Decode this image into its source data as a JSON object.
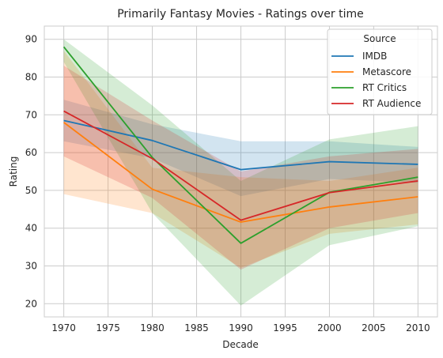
{
  "chart_data": {
    "type": "line",
    "title": "Primarily Fantasy Movies - Ratings over time",
    "xlabel": "Decade",
    "ylabel": "Rating",
    "xlim": [
      1967.8,
      2012.2
    ],
    "ylim": [
      16.5,
      93.5
    ],
    "xticks": [
      1970,
      1975,
      1980,
      1985,
      1990,
      1995,
      2000,
      2005,
      2010
    ],
    "yticks": [
      20,
      30,
      40,
      50,
      60,
      70,
      80,
      90
    ],
    "grid": true,
    "legend": {
      "title": "Source",
      "position": "top-right"
    },
    "x": [
      1970,
      1980,
      1990,
      2000,
      2010
    ],
    "series": [
      {
        "name": "IMDB",
        "color": "#1f77b4",
        "values": [
          68.5,
          63.2,
          55.5,
          57.6,
          56.9
        ],
        "lower": [
          63.0,
          58.5,
          48.5,
          53.0,
          52.0
        ],
        "upper": [
          74.0,
          67.5,
          63.0,
          63.0,
          61.5
        ]
      },
      {
        "name": "Metascore",
        "color": "#ff7f0e",
        "values": [
          68.0,
          50.3,
          41.6,
          45.6,
          48.3
        ],
        "lower": [
          49.0,
          44.0,
          29.5,
          38.5,
          41.0
        ],
        "upper": [
          87.0,
          56.0,
          53.5,
          52.5,
          56.0
        ]
      },
      {
        "name": "RT Critics",
        "color": "#2ca02c",
        "values": [
          88.0,
          58.7,
          36.0,
          49.5,
          53.5
        ],
        "lower": [
          84.0,
          44.0,
          19.5,
          35.5,
          40.5
        ],
        "upper": [
          90.0,
          72.5,
          52.5,
          63.5,
          67.0
        ]
      },
      {
        "name": "RT Audience",
        "color": "#d62728",
        "values": [
          71.0,
          58.4,
          42.1,
          49.4,
          52.5
        ],
        "lower": [
          59.0,
          48.0,
          29.0,
          40.0,
          44.0
        ],
        "upper": [
          83.0,
          68.5,
          55.0,
          59.0,
          61.0
        ]
      }
    ]
  }
}
